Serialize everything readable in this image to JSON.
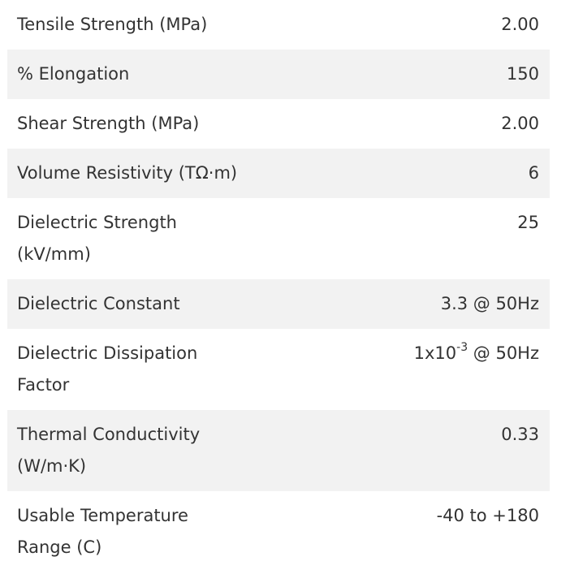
{
  "table": {
    "rows": [
      {
        "label": [
          "Tensile Strength (MPa)"
        ],
        "value": "2.00"
      },
      {
        "label": [
          "% Elongation"
        ],
        "value": "150"
      },
      {
        "label": [
          "Shear Strength (MPa)"
        ],
        "value": "2.00"
      },
      {
        "label": [
          "Volume Resistivity (TΩ·m)"
        ],
        "value": "6"
      },
      {
        "label": [
          "Dielectric Strength",
          "(kV/mm)"
        ],
        "value": "25"
      },
      {
        "label": [
          "Dielectric Constant"
        ],
        "value": "3.3 @ 50Hz"
      },
      {
        "label": [
          "Dielectric Dissipation",
          "Factor"
        ],
        "value": {
          "base": "1x10",
          "exponent": "-3",
          "suffix": " @ 50Hz"
        }
      },
      {
        "label": [
          "Thermal Conductivity",
          "(W/m·K)"
        ],
        "value": "0.33"
      },
      {
        "label": [
          "Usable Temperature",
          "Range (C)"
        ],
        "value": "-40 to +180"
      }
    ]
  }
}
